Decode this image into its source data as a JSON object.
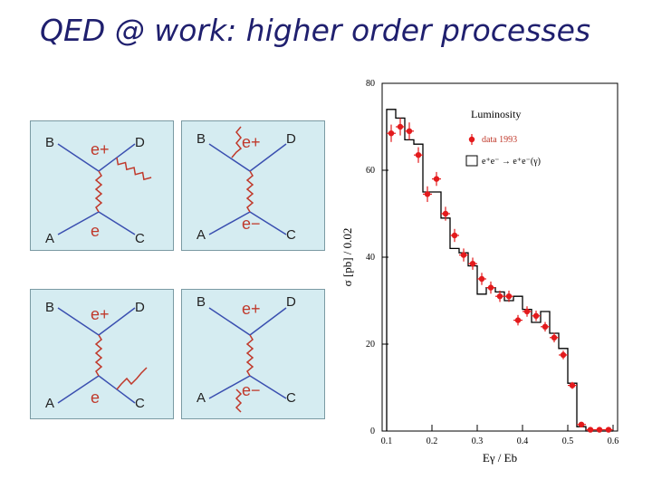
{
  "slide": {
    "title": "QED @ work: higher order processes"
  },
  "diagrams": [
    {
      "B": "B",
      "D": "D",
      "A": "A",
      "C": "C",
      "top": "e+",
      "bottom": "e"
    },
    {
      "B": "B",
      "D": "D",
      "A": "A",
      "C": "C",
      "top": "e+",
      "bottom": "e−"
    },
    {
      "B": "B",
      "D": "D",
      "A": "A",
      "C": "C",
      "top": "e+",
      "bottom": "e"
    },
    {
      "B": "B",
      "D": "D",
      "A": "A",
      "C": "C",
      "top": "e+",
      "bottom": "e−"
    }
  ],
  "chart_data": {
    "type": "scatter",
    "title": "Luminosity",
    "xlabel": "Eγ / Eb",
    "ylabel": "σ [pb] / 0.02",
    "xlim": [
      0.09,
      0.61
    ],
    "ylim": [
      0,
      80
    ],
    "x_ticks": [
      0.1,
      0.2,
      0.3,
      0.4,
      0.5,
      0.6
    ],
    "y_ticks": [
      0,
      20,
      40,
      60,
      80
    ],
    "legend": {
      "position": "top-right",
      "entries": [
        "data 1993",
        "e⁺e⁻ → e⁺e⁻(γ)"
      ]
    },
    "series": [
      {
        "name": "data 1993",
        "color": "#e31a1c",
        "x": [
          0.11,
          0.13,
          0.15,
          0.17,
          0.19,
          0.21,
          0.23,
          0.25,
          0.27,
          0.29,
          0.31,
          0.33,
          0.35,
          0.37,
          0.39,
          0.41,
          0.43,
          0.45,
          0.47,
          0.49,
          0.51,
          0.53,
          0.55,
          0.57,
          0.59
        ],
        "y": [
          68.5,
          70,
          69,
          63.5,
          54.5,
          58,
          50,
          45,
          40.5,
          38.5,
          35,
          33,
          31,
          31,
          25.5,
          27.5,
          26.5,
          24,
          21.5,
          17.5,
          10.5,
          1.5,
          0.3,
          0.3,
          0.3
        ],
        "err": [
          2,
          2,
          2,
          1.8,
          1.8,
          1.6,
          1.6,
          1.5,
          1.5,
          1.4,
          1.4,
          1.4,
          1.3,
          1.3,
          1.2,
          1.2,
          1.2,
          1.1,
          1.1,
          1.0,
          0.8,
          0.5,
          0.3,
          0.3,
          0.3
        ]
      },
      {
        "name": "e⁺e⁻ → e⁺e⁻(γ)",
        "type": "step",
        "color": "#000000",
        "edges": [
          0.1,
          0.12,
          0.14,
          0.16,
          0.18,
          0.2,
          0.22,
          0.24,
          0.26,
          0.28,
          0.3,
          0.32,
          0.34,
          0.36,
          0.38,
          0.4,
          0.42,
          0.44,
          0.46,
          0.48,
          0.5,
          0.52,
          0.54,
          0.56,
          0.58,
          0.6
        ],
        "values": [
          74,
          72,
          67,
          66,
          55,
          55,
          49,
          42,
          41,
          38,
          31.5,
          33,
          32,
          30,
          31,
          28,
          25,
          27.5,
          22.5,
          19,
          11,
          1,
          0,
          0,
          0
        ]
      }
    ]
  }
}
